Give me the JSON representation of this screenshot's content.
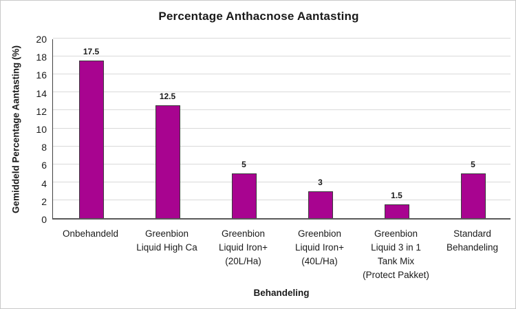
{
  "chart_data": {
    "type": "bar",
    "title": "Percentage Anthacnose Aantasting",
    "xlabel": "Behandeling",
    "ylabel": "Gemiddeld Percentage Aantasting (%)",
    "categories": [
      "Onbehandeld",
      "Greenbion\nLiquid High Ca",
      "Greenbion\nLiquid Iron+\n(20L/Ha)",
      "Greenbion\nLiquid Iron+\n(40L/Ha)",
      "Greenbion\nLiquid 3 in 1\nTank Mix\n(Protect Pakket)",
      "Standard\nBehandeling"
    ],
    "values": [
      17.5,
      12.5,
      5,
      3,
      1.5,
      5
    ],
    "data_labels": [
      "17.5",
      "12.5",
      "5",
      "3",
      "1.5",
      "5"
    ],
    "ylim": [
      0,
      20
    ],
    "yticks": [
      0,
      2,
      4,
      6,
      8,
      10,
      12,
      14,
      16,
      18,
      20
    ],
    "grid": "horizontal",
    "legend": "none",
    "colors": {
      "bar_fill": "#A80490",
      "bar_border": "#3A3A3A",
      "gridline": "#D9D9D9",
      "text": "#1A1A1A",
      "frame_border": "#C9C9C9",
      "background": "#FFFFFF"
    }
  }
}
